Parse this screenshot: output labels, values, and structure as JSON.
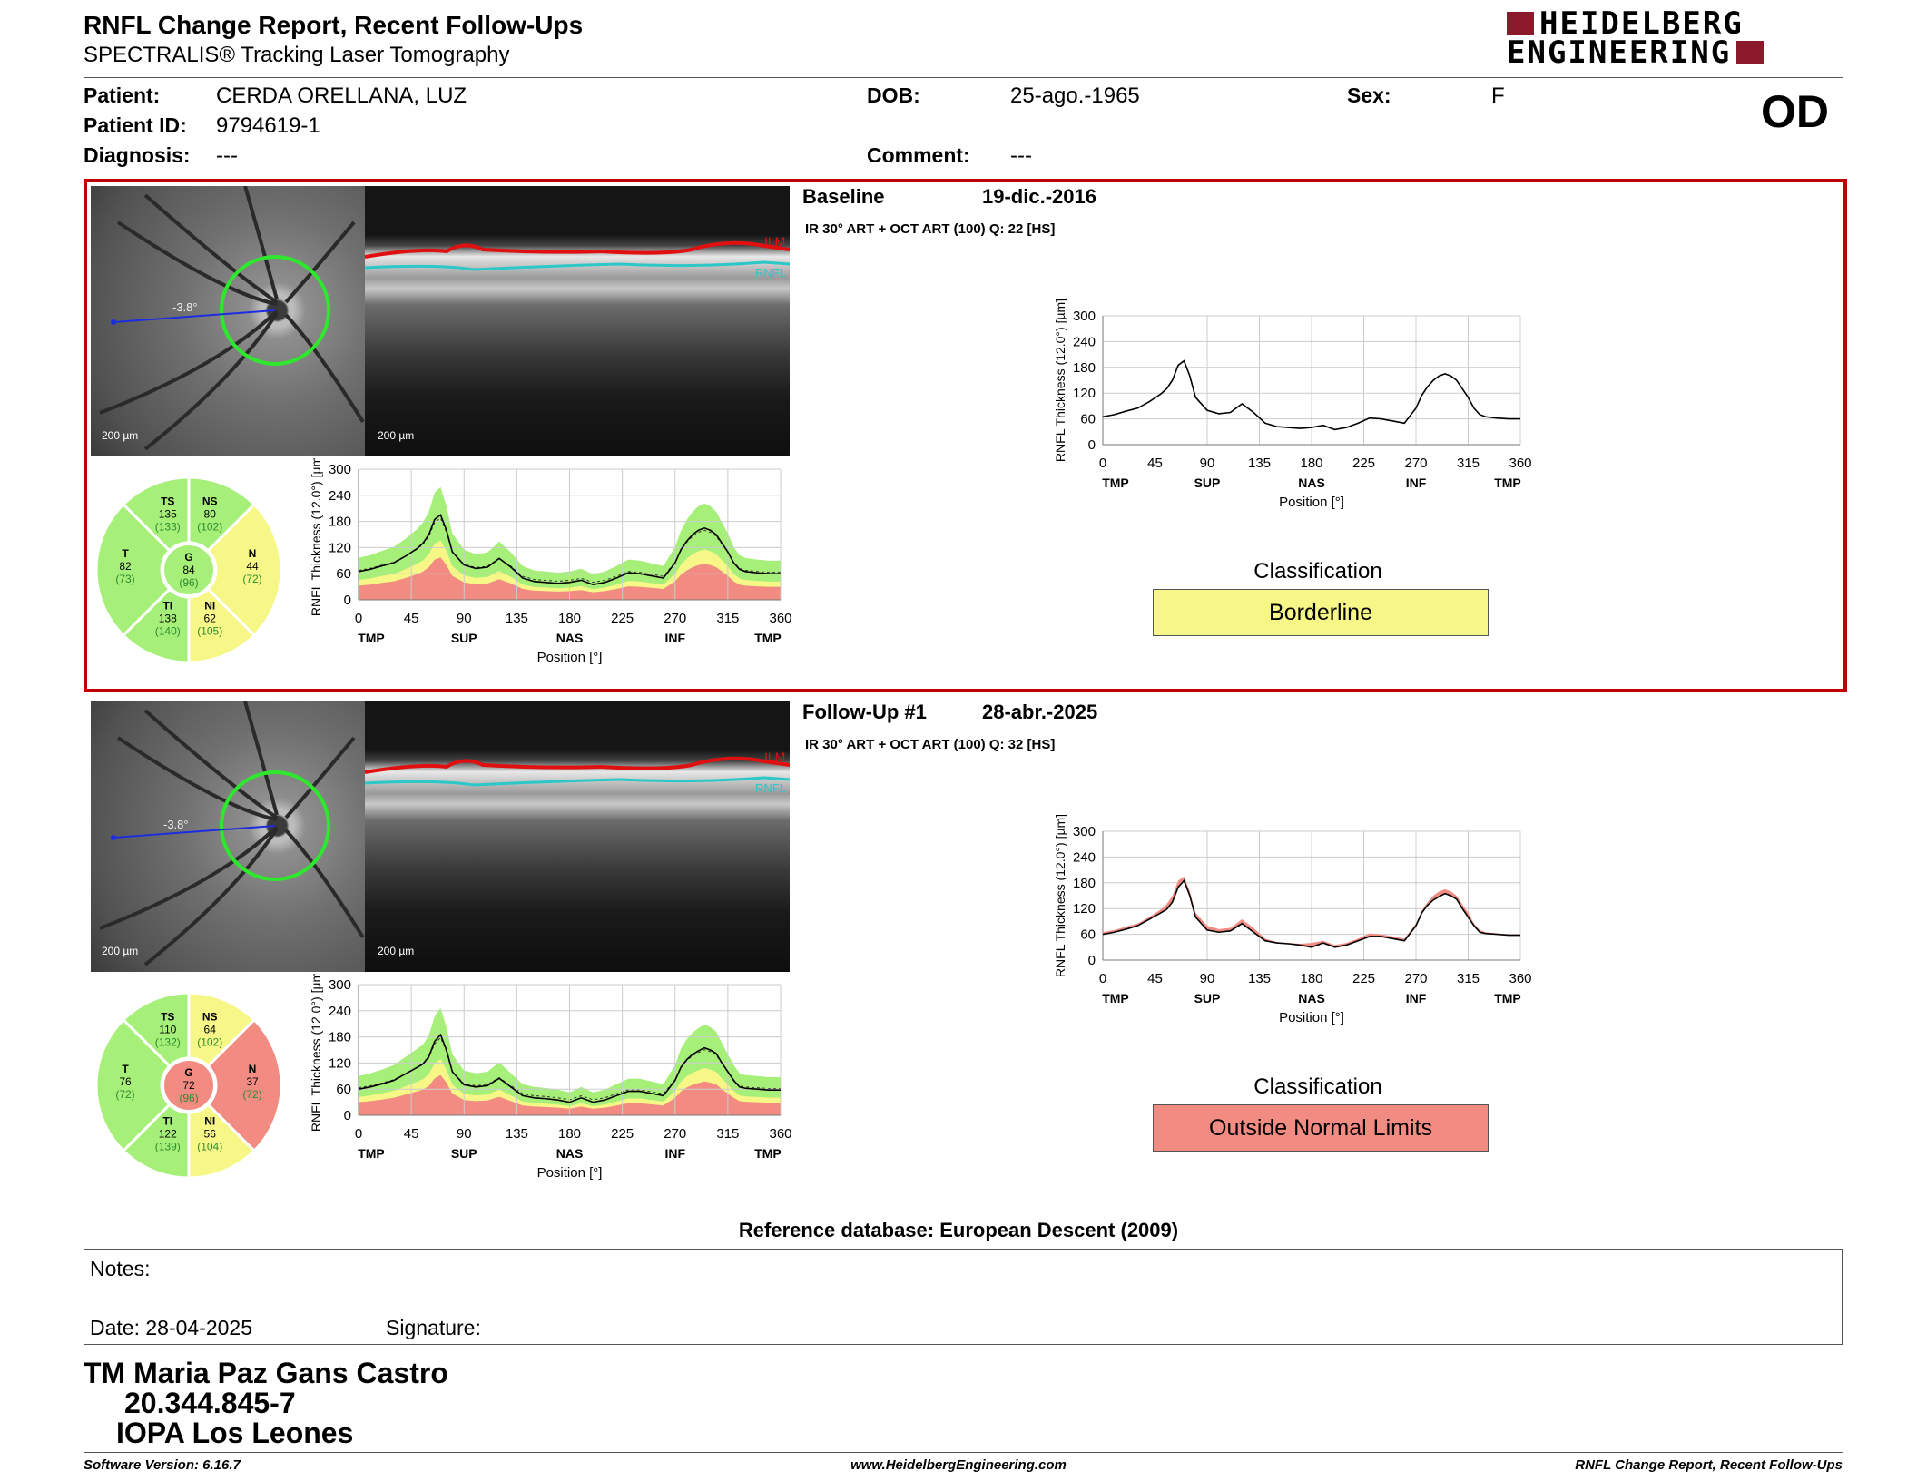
{
  "header": {
    "title": "RNFL Change Report, Recent Follow-Ups",
    "subtitle": "SPECTRALIS® Tracking Laser Tomography",
    "logo_line1": "HEIDELBERG",
    "logo_line2": "ENGINEERING",
    "eye": "OD"
  },
  "patient": {
    "name_label": "Patient:",
    "name": "CERDA ORELLANA, LUZ",
    "id_label": "Patient ID:",
    "id": "9794619-1",
    "diag_label": "Diagnosis:",
    "diagnosis": "---",
    "dob_label": "DOB:",
    "dob": "25-ago.-1965",
    "comment_label": "Comment:",
    "comment": "---",
    "sex_label": "Sex:",
    "sex": "F"
  },
  "common": {
    "ylabel": "RNFL Thickness (12.0°) [µm]",
    "xlabel": "Position [°]",
    "y_ticks": [
      "300",
      "240",
      "180",
      "120",
      "60",
      "0"
    ],
    "x_ticks": [
      "0",
      "45",
      "90",
      "135",
      "180",
      "225",
      "270",
      "315",
      "360"
    ],
    "sector_ticks": [
      "TMP",
      "SUP",
      "NAS",
      "INF",
      "TMP"
    ],
    "scale_label": "200 µm",
    "ilm": "ILM",
    "rnfl": "RNFL",
    "classification_label": "Classification",
    "colors": {
      "green": "#a6f07a",
      "yellow": "#f7f787",
      "red": "#f28b82",
      "frame": "#c00000"
    }
  },
  "exams": [
    {
      "label": "Baseline",
      "date": "19-dic.-2016",
      "scan": "IR 30° ART + OCT ART (100) Q: 22 [HS]",
      "angle": "-3.8°",
      "classification": "Borderline",
      "class_color": "#f7f787",
      "sectors": {
        "TS": {
          "value": "135",
          "ref": "(133)",
          "color": "#a6f07a"
        },
        "NS": {
          "value": "80",
          "ref": "(102)",
          "color": "#a6f07a"
        },
        "T": {
          "value": "82",
          "ref": "(73)",
          "color": "#a6f07a"
        },
        "G": {
          "value": "84",
          "ref": "(96)",
          "color": "#a6f07a"
        },
        "N": {
          "value": "44",
          "ref": "(72)",
          "color": "#f7f787"
        },
        "TI": {
          "value": "138",
          "ref": "(140)",
          "color": "#a6f07a"
        },
        "NI": {
          "value": "62",
          "ref": "(105)",
          "color": "#f7f787"
        }
      },
      "chart_data": {
        "type": "line",
        "x": [
          0,
          10,
          20,
          30,
          40,
          50,
          55,
          60,
          65,
          70,
          75,
          80,
          90,
          100,
          110,
          120,
          130,
          140,
          150,
          160,
          170,
          180,
          190,
          200,
          210,
          220,
          230,
          240,
          250,
          260,
          270,
          275,
          280,
          285,
          290,
          295,
          300,
          305,
          310,
          315,
          320,
          325,
          330,
          340,
          350,
          360
        ],
        "series": [
          {
            "values": [
              65,
              70,
              78,
              85,
              100,
              118,
              130,
              150,
              185,
              195,
              160,
              110,
              80,
              72,
              75,
              95,
              75,
              50,
              42,
              40,
              38,
              40,
              45,
              35,
              40,
              50,
              62,
              60,
              55,
              50,
              85,
              115,
              135,
              150,
              160,
              165,
              160,
              150,
              130,
              110,
              85,
              70,
              65,
              62,
              60,
              60
            ]
          }
        ],
        "xlim": [
          0,
          360
        ],
        "ylim": [
          0,
          300
        ]
      }
    },
    {
      "label": "Follow-Up #1",
      "date": "28-abr.-2025",
      "scan": "IR 30° ART + OCT ART (100) Q: 32 [HS]",
      "angle": "-3.8°",
      "classification": "Outside Normal Limits",
      "class_color": "#f28b82",
      "sectors": {
        "TS": {
          "value": "110",
          "ref": "(132)",
          "color": "#a6f07a"
        },
        "NS": {
          "value": "64",
          "ref": "(102)",
          "color": "#f7f787"
        },
        "T": {
          "value": "76",
          "ref": "(72)",
          "color": "#a6f07a"
        },
        "G": {
          "value": "72",
          "ref": "(96)",
          "color": "#f28b82"
        },
        "N": {
          "value": "37",
          "ref": "(72)",
          "color": "#f28b82"
        },
        "TI": {
          "value": "122",
          "ref": "(139)",
          "color": "#a6f07a"
        },
        "NI": {
          "value": "56",
          "ref": "(104)",
          "color": "#f7f787"
        }
      },
      "chart_data": {
        "type": "line",
        "x": [
          0,
          10,
          20,
          30,
          40,
          50,
          55,
          60,
          65,
          70,
          75,
          80,
          90,
          100,
          110,
          120,
          130,
          140,
          150,
          160,
          170,
          180,
          190,
          200,
          210,
          220,
          230,
          240,
          250,
          260,
          270,
          275,
          280,
          285,
          290,
          295,
          300,
          305,
          310,
          315,
          320,
          325,
          330,
          340,
          350,
          360
        ],
        "series": [
          {
            "values": [
              60,
              65,
              72,
              80,
              95,
              110,
              118,
              135,
              170,
              185,
              150,
              100,
              70,
              65,
              68,
              85,
              65,
              45,
              40,
              38,
              35,
              30,
              40,
              30,
              35,
              45,
              55,
              55,
              50,
              45,
              80,
              110,
              128,
              140,
              148,
              155,
              150,
              142,
              120,
              100,
              80,
              65,
              62,
              60,
              58,
              58
            ]
          }
        ],
        "xlim": [
          0,
          360
        ],
        "ylim": [
          0,
          300
        ]
      }
    }
  ],
  "footer": {
    "reference": "Reference database: European Descent (2009)",
    "notes_label": "Notes:",
    "date_label": "Date: 28-04-2025",
    "signature_label": "Signature:",
    "tech_name": "TM Maria Paz Gans Castro",
    "tech_id": "20.344.845-7",
    "tech_place": "IOPA Los Leones",
    "software": "Software Version: 6.16.7",
    "website": "www.HeidelbergEngineering.com",
    "report_name": "RNFL Change Report, Recent Follow-Ups"
  }
}
